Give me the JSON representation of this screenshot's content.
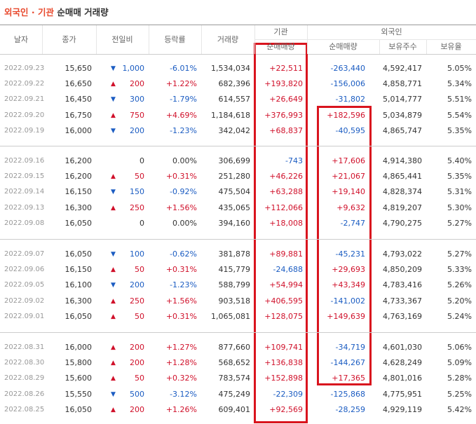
{
  "header": {
    "title_highlight": "외국인 · 기관",
    "title_rest": "순매매 거래량"
  },
  "table": {
    "columns": [
      "날자",
      "종가",
      "전일비",
      "등락률",
      "거래량"
    ],
    "group_inst": {
      "label": "기관",
      "sub": [
        "순매매량"
      ]
    },
    "group_foreign": {
      "label": "외국인",
      "sub": [
        "순매매량",
        "보유주수",
        "보유율"
      ]
    },
    "rows": [
      {
        "date": "2022.09.23",
        "close": "15,650",
        "dir": "down",
        "change": "1,000",
        "rate": "-6.01%",
        "volume": "1,534,034",
        "inst": "+22,511",
        "foreign": "-263,440",
        "holdings": "4,592,417",
        "ratio": "5.05%"
      },
      {
        "date": "2022.09.22",
        "close": "16,650",
        "dir": "up",
        "change": "200",
        "rate": "+1.22%",
        "volume": "682,396",
        "inst": "+193,820",
        "foreign": "-156,006",
        "holdings": "4,858,771",
        "ratio": "5.34%"
      },
      {
        "date": "2022.09.21",
        "close": "16,450",
        "dir": "down",
        "change": "300",
        "rate": "-1.79%",
        "volume": "614,557",
        "inst": "+26,649",
        "foreign": "-31,802",
        "holdings": "5,014,777",
        "ratio": "5.51%"
      },
      {
        "date": "2022.09.20",
        "close": "16,750",
        "dir": "up",
        "change": "750",
        "rate": "+4.69%",
        "volume": "1,184,618",
        "inst": "+376,993",
        "foreign": "+182,596",
        "holdings": "5,034,879",
        "ratio": "5.54%"
      },
      {
        "date": "2022.09.19",
        "close": "16,000",
        "dir": "down",
        "change": "200",
        "rate": "-1.23%",
        "volume": "342,042",
        "inst": "+68,837",
        "foreign": "-40,595",
        "holdings": "4,865,747",
        "ratio": "5.35%"
      },
      {
        "date": "2022.09.16",
        "close": "16,200",
        "dir": "none",
        "change": "0",
        "rate": "0.00%",
        "volume": "306,699",
        "inst": "-743",
        "foreign": "+17,606",
        "holdings": "4,914,380",
        "ratio": "5.40%"
      },
      {
        "date": "2022.09.15",
        "close": "16,200",
        "dir": "up",
        "change": "50",
        "rate": "+0.31%",
        "volume": "251,280",
        "inst": "+46,226",
        "foreign": "+21,067",
        "holdings": "4,865,441",
        "ratio": "5.35%"
      },
      {
        "date": "2022.09.14",
        "close": "16,150",
        "dir": "down",
        "change": "150",
        "rate": "-0.92%",
        "volume": "475,504",
        "inst": "+63,288",
        "foreign": "+19,140",
        "holdings": "4,828,374",
        "ratio": "5.31%"
      },
      {
        "date": "2022.09.13",
        "close": "16,300",
        "dir": "up",
        "change": "250",
        "rate": "+1.56%",
        "volume": "435,065",
        "inst": "+112,066",
        "foreign": "+9,632",
        "holdings": "4,819,207",
        "ratio": "5.30%"
      },
      {
        "date": "2022.09.08",
        "close": "16,050",
        "dir": "none",
        "change": "0",
        "rate": "0.00%",
        "volume": "394,160",
        "inst": "+18,008",
        "foreign": "-2,747",
        "holdings": "4,790,275",
        "ratio": "5.27%"
      },
      {
        "date": "2022.09.07",
        "close": "16,050",
        "dir": "down",
        "change": "100",
        "rate": "-0.62%",
        "volume": "381,878",
        "inst": "+89,881",
        "foreign": "-45,231",
        "holdings": "4,793,022",
        "ratio": "5.27%"
      },
      {
        "date": "2022.09.06",
        "close": "16,150",
        "dir": "up",
        "change": "50",
        "rate": "+0.31%",
        "volume": "415,779",
        "inst": "-24,688",
        "foreign": "+29,693",
        "holdings": "4,850,209",
        "ratio": "5.33%"
      },
      {
        "date": "2022.09.05",
        "close": "16,100",
        "dir": "down",
        "change": "200",
        "rate": "-1.23%",
        "volume": "588,799",
        "inst": "+54,994",
        "foreign": "+43,349",
        "holdings": "4,783,416",
        "ratio": "5.26%"
      },
      {
        "date": "2022.09.02",
        "close": "16,300",
        "dir": "up",
        "change": "250",
        "rate": "+1.56%",
        "volume": "903,518",
        "inst": "+406,595",
        "foreign": "-141,002",
        "holdings": "4,733,367",
        "ratio": "5.20%"
      },
      {
        "date": "2022.09.01",
        "close": "16,050",
        "dir": "up",
        "change": "50",
        "rate": "+0.31%",
        "volume": "1,065,081",
        "inst": "+128,075",
        "foreign": "+149,639",
        "holdings": "4,763,169",
        "ratio": "5.24%"
      },
      {
        "date": "2022.08.31",
        "close": "16,000",
        "dir": "up",
        "change": "200",
        "rate": "+1.27%",
        "volume": "877,660",
        "inst": "+109,741",
        "foreign": "-34,719",
        "holdings": "4,601,030",
        "ratio": "5.06%"
      },
      {
        "date": "2022.08.30",
        "close": "15,800",
        "dir": "up",
        "change": "200",
        "rate": "+1.28%",
        "volume": "568,652",
        "inst": "+136,838",
        "foreign": "-144,267",
        "holdings": "4,628,249",
        "ratio": "5.09%"
      },
      {
        "date": "2022.08.29",
        "close": "15,600",
        "dir": "up",
        "change": "50",
        "rate": "+0.32%",
        "volume": "783,574",
        "inst": "+152,898",
        "foreign": "+17,365",
        "holdings": "4,801,016",
        "ratio": "5.28%"
      },
      {
        "date": "2022.08.26",
        "close": "15,550",
        "dir": "down",
        "change": "500",
        "rate": "-3.12%",
        "volume": "475,249",
        "inst": "-22,309",
        "foreign": "-125,868",
        "holdings": "4,775,951",
        "ratio": "5.25%"
      },
      {
        "date": "2022.08.25",
        "close": "16,050",
        "dir": "up",
        "change": "200",
        "rate": "+1.26%",
        "volume": "609,401",
        "inst": "+92,569",
        "foreign": "-28,259",
        "holdings": "4,929,119",
        "ratio": "5.42%"
      }
    ]
  }
}
